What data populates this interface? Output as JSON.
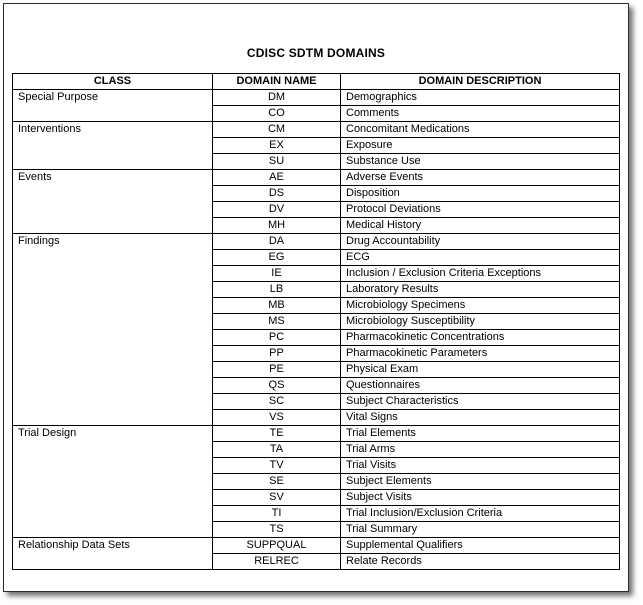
{
  "page": {
    "title": "CDISC SDTM DOMAINS"
  },
  "table": {
    "headers": [
      "CLASS",
      "DOMAIN NAME",
      "DOMAIN DESCRIPTION"
    ],
    "groups": [
      {
        "class_label": "Special Purpose",
        "rows": [
          {
            "domain": "DM",
            "description": "Demographics"
          },
          {
            "domain": "CO",
            "description": "Comments"
          }
        ]
      },
      {
        "class_label": "Interventions",
        "rows": [
          {
            "domain": "CM",
            "description": "Concomitant Medications"
          },
          {
            "domain": "EX",
            "description": "Exposure"
          },
          {
            "domain": "SU",
            "description": "Substance Use"
          }
        ]
      },
      {
        "class_label": "Events",
        "rows": [
          {
            "domain": "AE",
            "description": "Adverse Events"
          },
          {
            "domain": "DS",
            "description": "Disposition"
          },
          {
            "domain": "DV",
            "description": "Protocol Deviations"
          },
          {
            "domain": "MH",
            "description": "Medical History"
          }
        ]
      },
      {
        "class_label": "Findings",
        "rows": [
          {
            "domain": "DA",
            "description": "Drug Accountability"
          },
          {
            "domain": "EG",
            "description": "ECG"
          },
          {
            "domain": "IE",
            "description": "Inclusion / Exclusion Criteria Exceptions"
          },
          {
            "domain": "LB",
            "description": "Laboratory Results"
          },
          {
            "domain": "MB",
            "description": "Microbiology Specimens"
          },
          {
            "domain": "MS",
            "description": "Microbiology Susceptibility"
          },
          {
            "domain": "PC",
            "description": "Pharmacokinetic Concentrations"
          },
          {
            "domain": "PP",
            "description": "Pharmacokinetic Parameters"
          },
          {
            "domain": "PE",
            "description": "Physical Exam"
          },
          {
            "domain": "QS",
            "description": "Questionnaires"
          },
          {
            "domain": "SC",
            "description": "Subject Characteristics"
          },
          {
            "domain": "VS",
            "description": "Vital Signs"
          }
        ]
      },
      {
        "class_label": "Trial Design",
        "rows": [
          {
            "domain": "TE",
            "description": "Trial Elements"
          },
          {
            "domain": "TA",
            "description": "Trial Arms"
          },
          {
            "domain": "TV",
            "description": "Trial Visits"
          },
          {
            "domain": "SE",
            "description": "Subject Elements"
          },
          {
            "domain": "SV",
            "description": "Subject Visits"
          },
          {
            "domain": "TI",
            "description": "Trial Inclusion/Exclusion Criteria"
          },
          {
            "domain": "TS",
            "description": "Trial Summary"
          }
        ]
      },
      {
        "class_label": "Relationship Data Sets",
        "rows": [
          {
            "domain": "SUPPQUAL",
            "description": "Supplemental Qualifiers"
          },
          {
            "domain": "RELREC",
            "description": "Relate Records"
          }
        ]
      }
    ]
  }
}
